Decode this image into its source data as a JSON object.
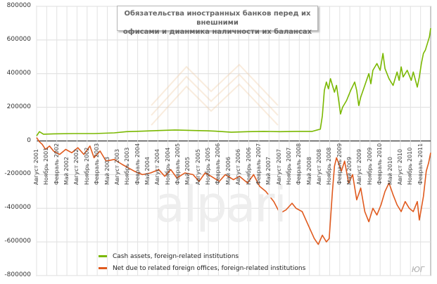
{
  "watermark": "alpari",
  "signature": "ЮГ",
  "chart_data": {
    "type": "line",
    "title": "Обязательства иностранных банков перед их внешними офисами и динамика наличности их балансах",
    "title_lines": [
      "Обязательства иностранных банков перед их внешними",
      "офисами и дианмика наличности их балансах"
    ],
    "xlabel": "",
    "ylabel": "",
    "ylim": [
      -800000,
      800000
    ],
    "yticks": [
      "800000",
      "600000",
      "400000",
      "200000",
      "0",
      "-200000",
      "-400000",
      "-600000",
      "-800000"
    ],
    "ytick_values": [
      800000,
      600000,
      400000,
      200000,
      0,
      -200000,
      -400000,
      -600000,
      -800000
    ],
    "xlim": [
      2001.58,
      2011.33
    ],
    "grid": true,
    "legend_position": "bottom-left",
    "xtick_labels": [
      "Август 2001",
      "Ноябрь 2001",
      "Февраль 2002",
      "Май 2002",
      "Август 2002",
      "Ноябрь 2002",
      "Февраль 2003",
      "Май 2003",
      "Август 2003",
      "Ноябрь 2003",
      "Февраль 2004",
      "Май 2004",
      "Август 2004",
      "Ноябрь 2004",
      "Февраль 2005",
      "Май 2005",
      "Август 2005",
      "Ноябрь 2005",
      "Февраль 2006",
      "Май 2006",
      "Август 2006",
      "Ноябрь 2006",
      "Февраль 2007",
      "Май 2007",
      "Август 2007",
      "Ноябрь 2007",
      "Февраль 2008",
      "Май 2008",
      "Август 2008",
      "Ноябрь 2008",
      "Февраль 2009",
      "Май 2009",
      "Август 2009",
      "Ноябрь 2009",
      "Февраль 2010",
      "Май 2010",
      "Август 2010",
      "Ноябрь 2010",
      "Февраль 2011"
    ],
    "series": [
      {
        "name": "Cash assets, foreign-related institutions",
        "color": "#7ab800",
        "points": [
          [
            2001.58,
            30000
          ],
          [
            2001.65,
            55000
          ],
          [
            2001.75,
            40000
          ],
          [
            2002.0,
            42000
          ],
          [
            2002.5,
            44000
          ],
          [
            2003.0,
            44000
          ],
          [
            2003.5,
            48000
          ],
          [
            2003.8,
            55000
          ],
          [
            2004.2,
            58000
          ],
          [
            2004.6,
            62000
          ],
          [
            2005.0,
            65000
          ],
          [
            2005.5,
            62000
          ],
          [
            2005.8,
            60000
          ],
          [
            2006.0,
            58000
          ],
          [
            2006.4,
            52000
          ],
          [
            2006.8,
            55000
          ],
          [
            2007.2,
            57000
          ],
          [
            2007.6,
            55000
          ],
          [
            2008.0,
            57000
          ],
          [
            2008.4,
            57000
          ],
          [
            2008.6,
            70000
          ],
          [
            2008.65,
            150000
          ],
          [
            2008.7,
            300000
          ],
          [
            2008.75,
            350000
          ],
          [
            2008.8,
            310000
          ],
          [
            2008.85,
            370000
          ],
          [
            2008.9,
            330000
          ],
          [
            2008.95,
            290000
          ],
          [
            2009.0,
            330000
          ],
          [
            2009.05,
            250000
          ],
          [
            2009.1,
            160000
          ],
          [
            2009.15,
            200000
          ],
          [
            2009.25,
            240000
          ],
          [
            2009.35,
            300000
          ],
          [
            2009.45,
            350000
          ],
          [
            2009.5,
            300000
          ],
          [
            2009.55,
            210000
          ],
          [
            2009.6,
            260000
          ],
          [
            2009.7,
            330000
          ],
          [
            2009.8,
            400000
          ],
          [
            2009.85,
            340000
          ],
          [
            2009.9,
            420000
          ],
          [
            2010.0,
            460000
          ],
          [
            2010.08,
            420000
          ],
          [
            2010.15,
            520000
          ],
          [
            2010.2,
            430000
          ],
          [
            2010.3,
            370000
          ],
          [
            2010.4,
            330000
          ],
          [
            2010.5,
            410000
          ],
          [
            2010.55,
            360000
          ],
          [
            2010.6,
            440000
          ],
          [
            2010.65,
            380000
          ],
          [
            2010.75,
            420000
          ],
          [
            2010.85,
            360000
          ],
          [
            2010.9,
            410000
          ],
          [
            2011.0,
            320000
          ],
          [
            2011.05,
            380000
          ],
          [
            2011.1,
            460000
          ],
          [
            2011.15,
            520000
          ],
          [
            2011.2,
            540000
          ],
          [
            2011.25,
            580000
          ],
          [
            2011.3,
            620000
          ],
          [
            2011.33,
            670000
          ]
        ]
      },
      {
        "name": "Net due to related foreign offices, foreign-related institutions",
        "color": "#e05a1e",
        "points": [
          [
            2001.58,
            20000
          ],
          [
            2001.65,
            -5000
          ],
          [
            2001.72,
            -20000
          ],
          [
            2001.8,
            -50000
          ],
          [
            2001.9,
            -30000
          ],
          [
            2002.0,
            -60000
          ],
          [
            2002.15,
            -80000
          ],
          [
            2002.3,
            -50000
          ],
          [
            2002.45,
            -70000
          ],
          [
            2002.6,
            -40000
          ],
          [
            2002.75,
            -80000
          ],
          [
            2002.9,
            -30000
          ],
          [
            2003.0,
            -100000
          ],
          [
            2003.15,
            -60000
          ],
          [
            2003.3,
            -120000
          ],
          [
            2003.5,
            -110000
          ],
          [
            2003.7,
            -140000
          ],
          [
            2003.85,
            -160000
          ],
          [
            2004.0,
            -180000
          ],
          [
            2004.2,
            -200000
          ],
          [
            2004.4,
            -190000
          ],
          [
            2004.6,
            -170000
          ],
          [
            2004.75,
            -210000
          ],
          [
            2004.9,
            -170000
          ],
          [
            2005.05,
            -220000
          ],
          [
            2005.25,
            -190000
          ],
          [
            2005.45,
            -200000
          ],
          [
            2005.6,
            -240000
          ],
          [
            2005.75,
            -190000
          ],
          [
            2005.9,
            -210000
          ],
          [
            2006.1,
            -240000
          ],
          [
            2006.25,
            -200000
          ],
          [
            2006.45,
            -230000
          ],
          [
            2006.6,
            -210000
          ],
          [
            2006.8,
            -250000
          ],
          [
            2006.95,
            -200000
          ],
          [
            2007.1,
            -270000
          ],
          [
            2007.25,
            -300000
          ],
          [
            2007.45,
            -360000
          ],
          [
            2007.6,
            -430000
          ],
          [
            2007.75,
            -410000
          ],
          [
            2007.9,
            -370000
          ],
          [
            2008.0,
            -400000
          ],
          [
            2008.15,
            -420000
          ],
          [
            2008.3,
            -500000
          ],
          [
            2008.45,
            -580000
          ],
          [
            2008.55,
            -615000
          ],
          [
            2008.65,
            -560000
          ],
          [
            2008.75,
            -600000
          ],
          [
            2008.82,
            -580000
          ],
          [
            2008.9,
            -300000
          ],
          [
            2008.95,
            -150000
          ],
          [
            2009.0,
            -100000
          ],
          [
            2009.05,
            -130000
          ],
          [
            2009.12,
            -180000
          ],
          [
            2009.2,
            -120000
          ],
          [
            2009.3,
            -250000
          ],
          [
            2009.4,
            -200000
          ],
          [
            2009.5,
            -350000
          ],
          [
            2009.6,
            -280000
          ],
          [
            2009.7,
            -420000
          ],
          [
            2009.8,
            -480000
          ],
          [
            2009.9,
            -400000
          ],
          [
            2010.0,
            -440000
          ],
          [
            2010.1,
            -380000
          ],
          [
            2010.2,
            -300000
          ],
          [
            2010.3,
            -250000
          ],
          [
            2010.4,
            -320000
          ],
          [
            2010.5,
            -380000
          ],
          [
            2010.6,
            -420000
          ],
          [
            2010.7,
            -360000
          ],
          [
            2010.8,
            -400000
          ],
          [
            2010.9,
            -420000
          ],
          [
            2011.0,
            -360000
          ],
          [
            2011.05,
            -470000
          ],
          [
            2011.1,
            -400000
          ],
          [
            2011.15,
            -330000
          ],
          [
            2011.22,
            -180000
          ],
          [
            2011.28,
            -130000
          ],
          [
            2011.33,
            -70000
          ]
        ]
      }
    ]
  }
}
